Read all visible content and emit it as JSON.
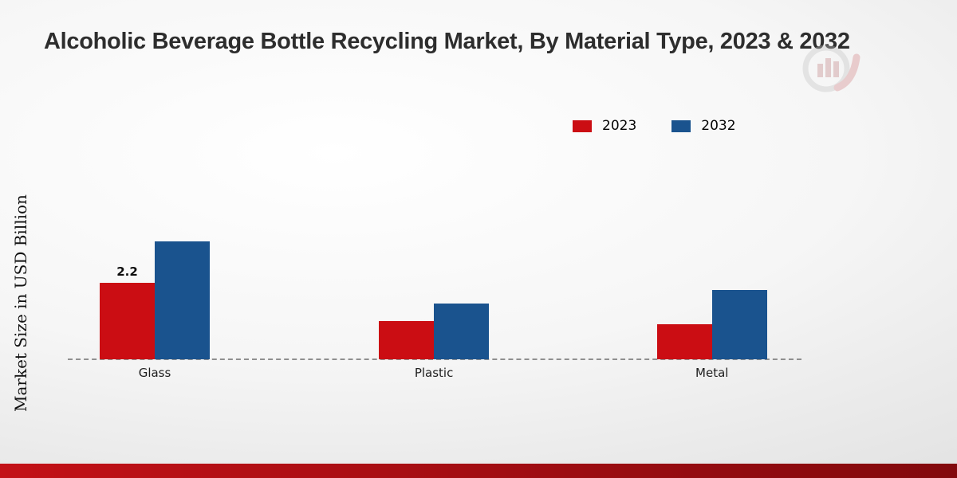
{
  "page": {
    "title": "Alcoholic Beverage Bottle Recycling Market, By Material Type, 2023 & 2032",
    "ylabel": "Market Size in USD Billion"
  },
  "legend": {
    "items": [
      {
        "label": "2023",
        "color": "#cb0d13"
      },
      {
        "label": "2032",
        "color": "#1a538e"
      }
    ]
  },
  "chart_data": {
    "type": "bar",
    "title": "Alcoholic Beverage Bottle Recycling Market, By Material Type, 2023 & 2032",
    "categories": [
      "Glass",
      "Plastic",
      "Metal"
    ],
    "series": [
      {
        "name": "2023",
        "color": "#cb0d13",
        "values": [
          2.2,
          1.1,
          1.0
        ],
        "labels": [
          "2.2",
          "",
          ""
        ]
      },
      {
        "name": "2032",
        "color": "#1a538e",
        "values": [
          3.4,
          1.6,
          2.0
        ],
        "labels": [
          "",
          "",
          ""
        ]
      }
    ],
    "xlabel": "",
    "ylabel": "Market Size in USD Billion",
    "ylim": [
      0,
      4.5
    ],
    "grid": false,
    "legend_position": "top-right",
    "baseline_style": "dashed"
  },
  "footer": {
    "gradient_left": "#c31117",
    "gradient_right": "#82090d"
  },
  "watermark": {
    "name": "market-research-logo"
  }
}
